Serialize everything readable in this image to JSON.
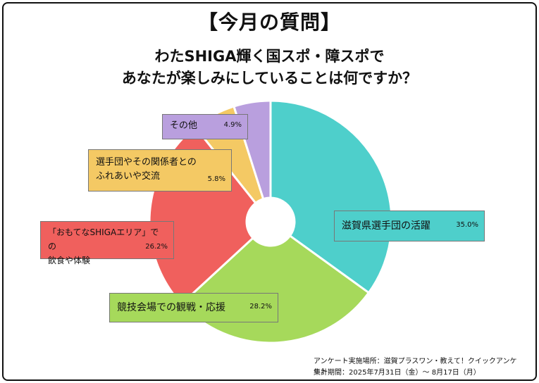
{
  "title": "【今月の質問】",
  "question_line1": "わたSHIGA輝く国スポ・障スポで",
  "question_line2": "あなたが楽しみにしていることは何ですか？",
  "chart_data": {
    "type": "pie",
    "donut": true,
    "slices": [
      {
        "label": "滋賀県選手団の活躍",
        "value": 35.0,
        "display": "35.0%",
        "color": "#4ecfcb"
      },
      {
        "label": "競技会場での観戦・応援",
        "value": 28.2,
        "display": "28.2%",
        "color": "#a6d95b"
      },
      {
        "label": "「おもてなSHIGAエリア」での飲食や体験",
        "value": 26.2,
        "display": "26.2%",
        "color": "#f0605d"
      },
      {
        "label": "選手団やその関係者とのふれあいや交流",
        "value": 5.8,
        "display": "5.8%",
        "color": "#f4c964"
      },
      {
        "label": "その他",
        "value": 4.9,
        "display": "4.9%",
        "color": "#b99fde"
      }
    ]
  },
  "labels": {
    "s0_line1": "滋賀県選手団の活躍",
    "s1_line1": "競技会場での観戦・応援",
    "s2_line1": "「おもてなSHIGAエリア」での",
    "s2_line2": "飲食や体験",
    "s3_line1": "選手団やその関係者との",
    "s3_line2": "ふれあいや交流",
    "s4_line1": "その他"
  },
  "footer": {
    "source": "アンケート実施場所：滋賀プラスワン・教えて！クイックアンケート",
    "period": "集計期間：2025年7月31日（金）～ 8月17日（月）"
  }
}
